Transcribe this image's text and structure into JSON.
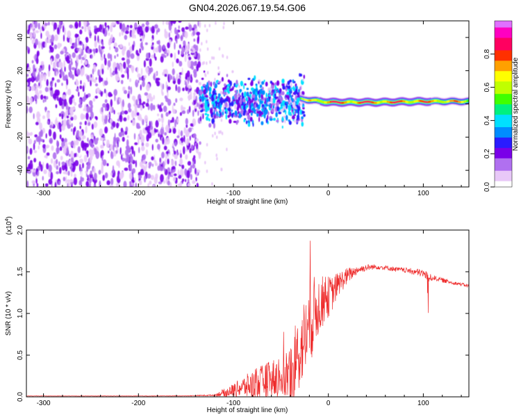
{
  "figure_title": "GN04.2026.067.19.54.G06",
  "chart_data": [
    {
      "type": "heatmap",
      "title": "GN04.2026.067.19.54.G06",
      "xlabel": "Height of straight line (km)",
      "ylabel": "Frequency (Hz)",
      "xlim": [
        -318,
        148
      ],
      "ylim": [
        -50,
        50
      ],
      "xticks": [
        -300,
        -200,
        -100,
        0,
        100
      ],
      "yticks": [
        -40,
        -20,
        0,
        20,
        40
      ],
      "xtick_labels": [
        "-300",
        "-200",
        "-100",
        "0",
        "100"
      ],
      "ytick_labels": [
        "-40",
        "-20",
        "0",
        "20",
        "40"
      ],
      "colorbar": {
        "label": "Normalized spectral amplitude",
        "range": [
          0,
          1
        ],
        "ticks": [
          0.0,
          0.2,
          0.4,
          0.6,
          0.8
        ],
        "tick_labels": [
          "0.0",
          "0.2",
          "0.4",
          "0.6",
          "0.8"
        ],
        "colors": [
          "#ffffff",
          "#e8c8f8",
          "#b070f0",
          "#7a00e8",
          "#2a1cff",
          "#008cff",
          "#00e0ff",
          "#00f080",
          "#40ff00",
          "#c0ff00",
          "#ffff00",
          "#ffa000",
          "#ff3000",
          "#ff0060",
          "#ff00c0",
          "#e070ff"
        ]
      },
      "noise_region": {
        "x_range": [
          -318,
          -135
        ],
        "y_range": [
          -50,
          50
        ],
        "amplitude": 0.2
      },
      "transition_region": {
        "x_range": [
          -135,
          -25
        ],
        "center_freq": 2,
        "spread_hz": 10,
        "amplitude": 0.35
      },
      "signal_track": [
        {
          "x": -30,
          "freq": 3,
          "amplitude": 0.6
        },
        {
          "x": -15,
          "freq": 2,
          "amplitude": 0.8
        },
        {
          "x": 0,
          "freq": 1,
          "amplitude": 0.9
        },
        {
          "x": 50,
          "freq": 1,
          "amplitude": 0.9
        },
        {
          "x": 100,
          "freq": 1.5,
          "amplitude": 0.85
        },
        {
          "x": 148,
          "freq": 1.5,
          "amplitude": 0.75
        }
      ]
    },
    {
      "type": "line",
      "xlabel": "Height of straight line (km)",
      "ylabel": "SNR (10 * v/v)",
      "y_multiplier_label": "(x10",
      "y_multiplier_exp": "4",
      "y_multiplier_close": ")",
      "xlim": [
        -318,
        148
      ],
      "ylim": [
        0,
        2.0
      ],
      "xticks": [
        -300,
        -200,
        -100,
        0,
        100
      ],
      "yticks": [
        0.0,
        0.5,
        1.0,
        1.5,
        2.0
      ],
      "xtick_labels": [
        "-300",
        "-200",
        "-100",
        "0",
        "100"
      ],
      "ytick_labels": [
        "0.0",
        "0.5",
        "1.0",
        "1.5",
        "2.0"
      ],
      "series": [
        {
          "name": "SNR",
          "color": "#ee2a2a",
          "x": [
            -318,
            -250,
            -200,
            -150,
            -120,
            -110,
            -100,
            -90,
            -80,
            -70,
            -60,
            -50,
            -40,
            -35,
            -30,
            -25,
            -20,
            -15,
            -10,
            -5,
            0,
            5,
            10,
            20,
            30,
            40,
            50,
            60,
            70,
            80,
            90,
            100,
            104,
            105,
            106,
            110,
            120,
            130,
            140,
            148
          ],
          "y": [
            0.01,
            0.01,
            0.01,
            0.012,
            0.02,
            0.05,
            0.08,
            0.12,
            0.14,
            0.18,
            0.22,
            0.25,
            0.3,
            0.4,
            0.55,
            0.7,
            0.85,
            1.0,
            1.1,
            1.15,
            1.2,
            1.25,
            1.35,
            1.45,
            1.52,
            1.55,
            1.56,
            1.55,
            1.53,
            1.52,
            1.5,
            1.48,
            1.45,
            1.2,
            1.42,
            1.43,
            1.4,
            1.37,
            1.35,
            1.33
          ],
          "noise": [
            0.002,
            0.002,
            0.002,
            0.003,
            0.01,
            0.05,
            0.08,
            0.12,
            0.18,
            0.2,
            0.22,
            0.28,
            0.35,
            0.45,
            0.45,
            0.5,
            0.5,
            0.45,
            0.35,
            0.3,
            0.25,
            0.2,
            0.15,
            0.1,
            0.05,
            0.04,
            0.03,
            0.03,
            0.03,
            0.03,
            0.04,
            0.05,
            0.06,
            0.3,
            0.06,
            0.03,
            0.03,
            0.02,
            0.02,
            0.02
          ]
        }
      ]
    }
  ]
}
